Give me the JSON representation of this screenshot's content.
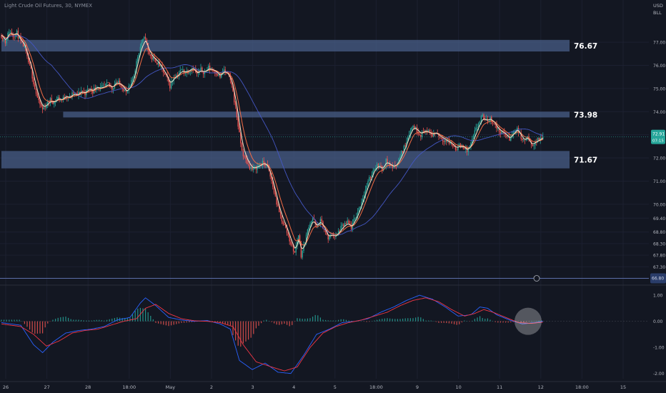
{
  "header": {
    "symbol_line": "Light Crude Oil Futures, 30, NYMEX"
  },
  "price_axis": {
    "currency": "USD",
    "unit": "BLL",
    "current_price": "72.91",
    "countdown": "07:15",
    "bottom_tag": "66.80"
  },
  "macd_axis": {
    "ticks": [
      "1.00",
      "0.00",
      "-1.00",
      "-2.00"
    ]
  },
  "colors": {
    "background": "#131722",
    "zone_fill": "#4a5f8a",
    "up_candle": "#26a69a",
    "down_candle": "#ef5350",
    "ema_fast": "#f2e6c9",
    "ema_mid": "#f36c44",
    "sma_slow": "#4457c4",
    "macd_line": "#2962ff",
    "signal_line": "#f23645",
    "price_tag": "#26a69a",
    "bottom_line": "#5b6ea8"
  },
  "chart_data": {
    "type": "candlestick",
    "price_range": [
      66.6,
      78.7
    ],
    "macd_range": [
      -2.2,
      1.25
    ],
    "price_ticks": [
      "77.00",
      "76.00",
      "75.00",
      "74.00",
      "73.00",
      "72.00",
      "71.00",
      "70.00",
      "69.40",
      "68.80",
      "68.30",
      "67.80",
      "67.30"
    ],
    "x_labels": [
      "26",
      "27",
      "28",
      "18:00",
      "May",
      "2",
      "3",
      "4",
      "5",
      "18:00",
      "9",
      "10",
      "11",
      "12",
      "18:00",
      "15"
    ],
    "zones": [
      {
        "label": "76.67",
        "top": 77.1,
        "bottom": 76.6,
        "start_index": 0
      },
      {
        "label": "73.98",
        "top": 74.0,
        "bottom": 73.75,
        "start_index": 48
      },
      {
        "label": "71.67",
        "top": 72.3,
        "bottom": 71.55,
        "start_index": 0
      }
    ],
    "current_price": 72.91,
    "bottom_level": 66.8,
    "price_path": [
      [
        0,
        77.3
      ],
      [
        3,
        77.0
      ],
      [
        6,
        77.5
      ],
      [
        9,
        77.3
      ],
      [
        12,
        77.4
      ],
      [
        15,
        77.0
      ],
      [
        18,
        76.8
      ],
      [
        20,
        76.3
      ],
      [
        23,
        75.8
      ],
      [
        26,
        75.0
      ],
      [
        29,
        74.4
      ],
      [
        32,
        74.1
      ],
      [
        35,
        74.3
      ],
      [
        38,
        74.5
      ],
      [
        41,
        74.4
      ],
      [
        44,
        74.6
      ],
      [
        47,
        74.5
      ],
      [
        50,
        74.7
      ],
      [
        53,
        74.6
      ],
      [
        56,
        74.8
      ],
      [
        59,
        74.7
      ],
      [
        62,
        74.9
      ],
      [
        65,
        74.8
      ],
      [
        68,
        75.0
      ],
      [
        71,
        74.9
      ],
      [
        74,
        75.1
      ],
      [
        77,
        75.0
      ],
      [
        80,
        75.1
      ],
      [
        83,
        75.2
      ],
      [
        86,
        75.0
      ],
      [
        89,
        75.3
      ],
      [
        92,
        75.2
      ],
      [
        95,
        75.0
      ],
      [
        97,
        74.8
      ],
      [
        100,
        75.1
      ],
      [
        103,
        75.6
      ],
      [
        106,
        76.4
      ],
      [
        109,
        77.0
      ],
      [
        112,
        77.2
      ],
      [
        114,
        76.6
      ],
      [
        117,
        76.3
      ],
      [
        120,
        76.2
      ],
      [
        123,
        76.0
      ],
      [
        126,
        75.7
      ],
      [
        129,
        75.4
      ],
      [
        131,
        75.1
      ],
      [
        134,
        75.5
      ],
      [
        137,
        75.6
      ],
      [
        140,
        75.8
      ],
      [
        143,
        75.7
      ],
      [
        146,
        75.8
      ],
      [
        149,
        75.9
      ],
      [
        152,
        75.6
      ],
      [
        155,
        75.8
      ],
      [
        158,
        75.7
      ],
      [
        161,
        75.9
      ],
      [
        164,
        75.8
      ],
      [
        167,
        75.7
      ],
      [
        170,
        75.5
      ],
      [
        173,
        75.8
      ],
      [
        176,
        75.6
      ],
      [
        179,
        75.2
      ],
      [
        181,
        74.5
      ],
      [
        183,
        73.8
      ],
      [
        185,
        73.0
      ],
      [
        187,
        72.3
      ],
      [
        189,
        72.0
      ],
      [
        192,
        71.7
      ],
      [
        195,
        71.5
      ],
      [
        198,
        71.6
      ],
      [
        201,
        71.7
      ],
      [
        204,
        71.8
      ],
      [
        207,
        71.6
      ],
      [
        210,
        71.0
      ],
      [
        213,
        70.3
      ],
      [
        216,
        69.6
      ],
      [
        219,
        69.2
      ],
      [
        222,
        68.8
      ],
      [
        225,
        68.3
      ],
      [
        228,
        67.9
      ],
      [
        231,
        68.7
      ],
      [
        233,
        67.8
      ],
      [
        236,
        68.4
      ],
      [
        239,
        69.1
      ],
      [
        242,
        69.4
      ],
      [
        245,
        69.0
      ],
      [
        248,
        69.3
      ],
      [
        251,
        68.9
      ],
      [
        254,
        68.5
      ],
      [
        257,
        68.7
      ],
      [
        260,
        68.6
      ],
      [
        263,
        68.9
      ],
      [
        266,
        69.1
      ],
      [
        269,
        69.2
      ],
      [
        272,
        69.0
      ],
      [
        275,
        69.4
      ],
      [
        278,
        69.8
      ],
      [
        281,
        70.3
      ],
      [
        284,
        70.8
      ],
      [
        287,
        71.2
      ],
      [
        290,
        71.6
      ],
      [
        293,
        71.7
      ],
      [
        296,
        71.5
      ],
      [
        299,
        71.9
      ],
      [
        302,
        71.7
      ],
      [
        305,
        71.6
      ],
      [
        308,
        71.8
      ],
      [
        311,
        72.2
      ],
      [
        314,
        72.6
      ],
      [
        317,
        73.1
      ],
      [
        320,
        73.4
      ],
      [
        323,
        73.2
      ],
      [
        326,
        73.0
      ],
      [
        329,
        73.2
      ],
      [
        332,
        73.1
      ],
      [
        335,
        73.0
      ],
      [
        338,
        73.1
      ],
      [
        341,
        72.9
      ],
      [
        344,
        72.8
      ],
      [
        347,
        72.7
      ],
      [
        350,
        72.6
      ],
      [
        353,
        72.4
      ],
      [
        356,
        72.5
      ],
      [
        359,
        72.5
      ],
      [
        362,
        72.3
      ],
      [
        365,
        72.6
      ],
      [
        368,
        73.1
      ],
      [
        371,
        73.5
      ],
      [
        374,
        73.8
      ],
      [
        377,
        73.6
      ],
      [
        380,
        73.7
      ],
      [
        383,
        73.5
      ],
      [
        386,
        73.2
      ],
      [
        389,
        73.1
      ],
      [
        392,
        73.0
      ],
      [
        395,
        72.8
      ],
      [
        398,
        73.1
      ],
      [
        401,
        73.3
      ],
      [
        403,
        73.0
      ],
      [
        406,
        72.7
      ],
      [
        409,
        72.9
      ],
      [
        412,
        72.5
      ],
      [
        415,
        72.7
      ],
      [
        418,
        72.8
      ],
      [
        421,
        72.9
      ]
    ],
    "macd_path": [
      [
        0,
        -0.05
      ],
      [
        15,
        -0.15
      ],
      [
        25,
        -0.9
      ],
      [
        32,
        -1.2
      ],
      [
        40,
        -0.8
      ],
      [
        50,
        -0.45
      ],
      [
        60,
        -0.35
      ],
      [
        70,
        -0.3
      ],
      [
        80,
        -0.2
      ],
      [
        90,
        0.05
      ],
      [
        100,
        0.15
      ],
      [
        108,
        0.7
      ],
      [
        112,
        0.9
      ],
      [
        120,
        0.6
      ],
      [
        130,
        0.15
      ],
      [
        140,
        0.05
      ],
      [
        150,
        0.0
      ],
      [
        160,
        0.03
      ],
      [
        170,
        -0.1
      ],
      [
        178,
        -0.3
      ],
      [
        185,
        -1.5
      ],
      [
        195,
        -1.85
      ],
      [
        205,
        -1.6
      ],
      [
        215,
        -1.95
      ],
      [
        225,
        -2.0
      ],
      [
        235,
        -1.3
      ],
      [
        245,
        -0.5
      ],
      [
        255,
        -0.3
      ],
      [
        265,
        -0.05
      ],
      [
        275,
        0.0
      ],
      [
        285,
        0.1
      ],
      [
        295,
        0.35
      ],
      [
        305,
        0.55
      ],
      [
        315,
        0.8
      ],
      [
        325,
        1.0
      ],
      [
        335,
        0.85
      ],
      [
        345,
        0.55
      ],
      [
        355,
        0.2
      ],
      [
        365,
        0.25
      ],
      [
        372,
        0.55
      ],
      [
        378,
        0.5
      ],
      [
        385,
        0.25
      ],
      [
        395,
        0.05
      ],
      [
        405,
        -0.1
      ],
      [
        415,
        -0.05
      ],
      [
        421,
        0.0
      ]
    ],
    "signal_path": [
      [
        0,
        -0.1
      ],
      [
        15,
        -0.2
      ],
      [
        25,
        -0.5
      ],
      [
        35,
        -0.95
      ],
      [
        45,
        -0.75
      ],
      [
        55,
        -0.45
      ],
      [
        65,
        -0.35
      ],
      [
        75,
        -0.3
      ],
      [
        85,
        -0.15
      ],
      [
        95,
        0.0
      ],
      [
        105,
        0.1
      ],
      [
        112,
        0.5
      ],
      [
        120,
        0.65
      ],
      [
        130,
        0.3
      ],
      [
        140,
        0.1
      ],
      [
        150,
        0.02
      ],
      [
        160,
        0.0
      ],
      [
        170,
        -0.05
      ],
      [
        180,
        -0.2
      ],
      [
        188,
        -0.9
      ],
      [
        198,
        -1.55
      ],
      [
        210,
        -1.75
      ],
      [
        220,
        -1.9
      ],
      [
        230,
        -1.75
      ],
      [
        240,
        -1.0
      ],
      [
        250,
        -0.45
      ],
      [
        260,
        -0.2
      ],
      [
        270,
        -0.05
      ],
      [
        280,
        0.05
      ],
      [
        290,
        0.2
      ],
      [
        300,
        0.35
      ],
      [
        310,
        0.6
      ],
      [
        320,
        0.8
      ],
      [
        330,
        0.9
      ],
      [
        340,
        0.75
      ],
      [
        350,
        0.45
      ],
      [
        360,
        0.2
      ],
      [
        368,
        0.3
      ],
      [
        375,
        0.45
      ],
      [
        382,
        0.35
      ],
      [
        392,
        0.15
      ],
      [
        402,
        -0.05
      ],
      [
        412,
        -0.08
      ],
      [
        421,
        -0.03
      ]
    ]
  }
}
